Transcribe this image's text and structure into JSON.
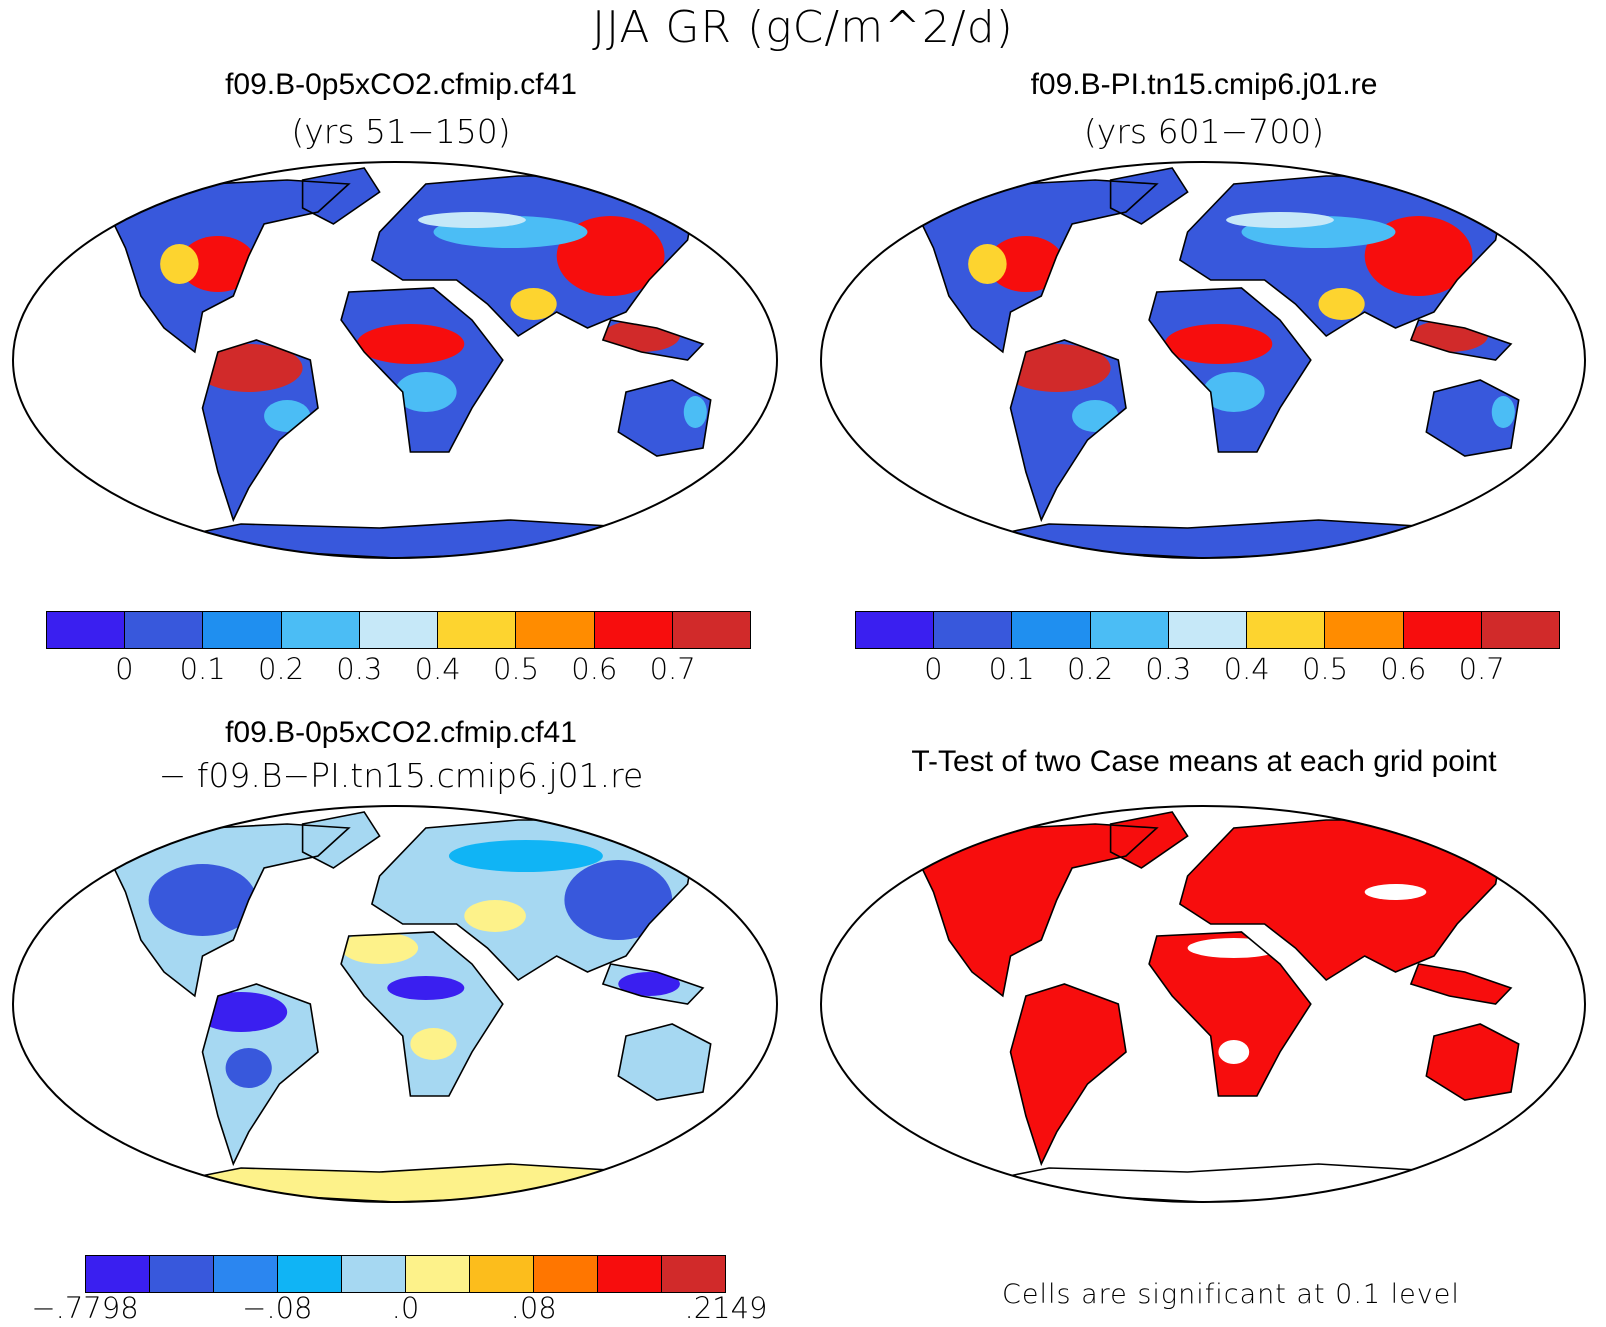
{
  "title": "JJA GR (gC/m^2/d)",
  "panels": [
    {
      "id": "tl",
      "title": "f09.B-0p5xCO2.cfmip.cf41",
      "subtitle": "(yrs 51−150)",
      "style": "abs"
    },
    {
      "id": "tr",
      "title": "f09.B-PI.tn15.cmip6.j01.re",
      "subtitle": "(yrs 601−700)",
      "style": "abs"
    },
    {
      "id": "bl",
      "title": "f09.B-0p5xCO2.cfmip.cf41",
      "subtitle": "− f09.B−PI.tn15.cmip6.j01.re",
      "style": "diff"
    },
    {
      "id": "br",
      "title": "T-Test of two Case means at each grid point",
      "subtitle": "",
      "style": "ttest"
    }
  ],
  "abs_colorbar": {
    "colors": [
      "#3a1ff0",
      "#3858dc",
      "#1f8ff0",
      "#4bbdf5",
      "#c6e8f8",
      "#fdd42f",
      "#ff8c00",
      "#f70d0d",
      "#d12a2a"
    ],
    "labels": [
      "0",
      "0.1",
      "0.2",
      "0.3",
      "0.4",
      "0.5",
      "0.6",
      "0.7"
    ]
  },
  "diff_colorbar": {
    "colors": [
      "#3a1ff0",
      "#3858dc",
      "#2b86f0",
      "#10b4f5",
      "#a6d8f2",
      "#fdf28a",
      "#fcbd1c",
      "#ff7600",
      "#f70d0d",
      "#d12a2a"
    ],
    "labels": [
      "−.7798",
      "−.08",
      ".0",
      ".08",
      ".2149"
    ]
  },
  "ttest_footnote": "Cells are significant at 0.1 level",
  "colors": {
    "ttest_signif": "#f70d0d",
    "map_outline": "#000000",
    "ocean": "#ffffff"
  }
}
